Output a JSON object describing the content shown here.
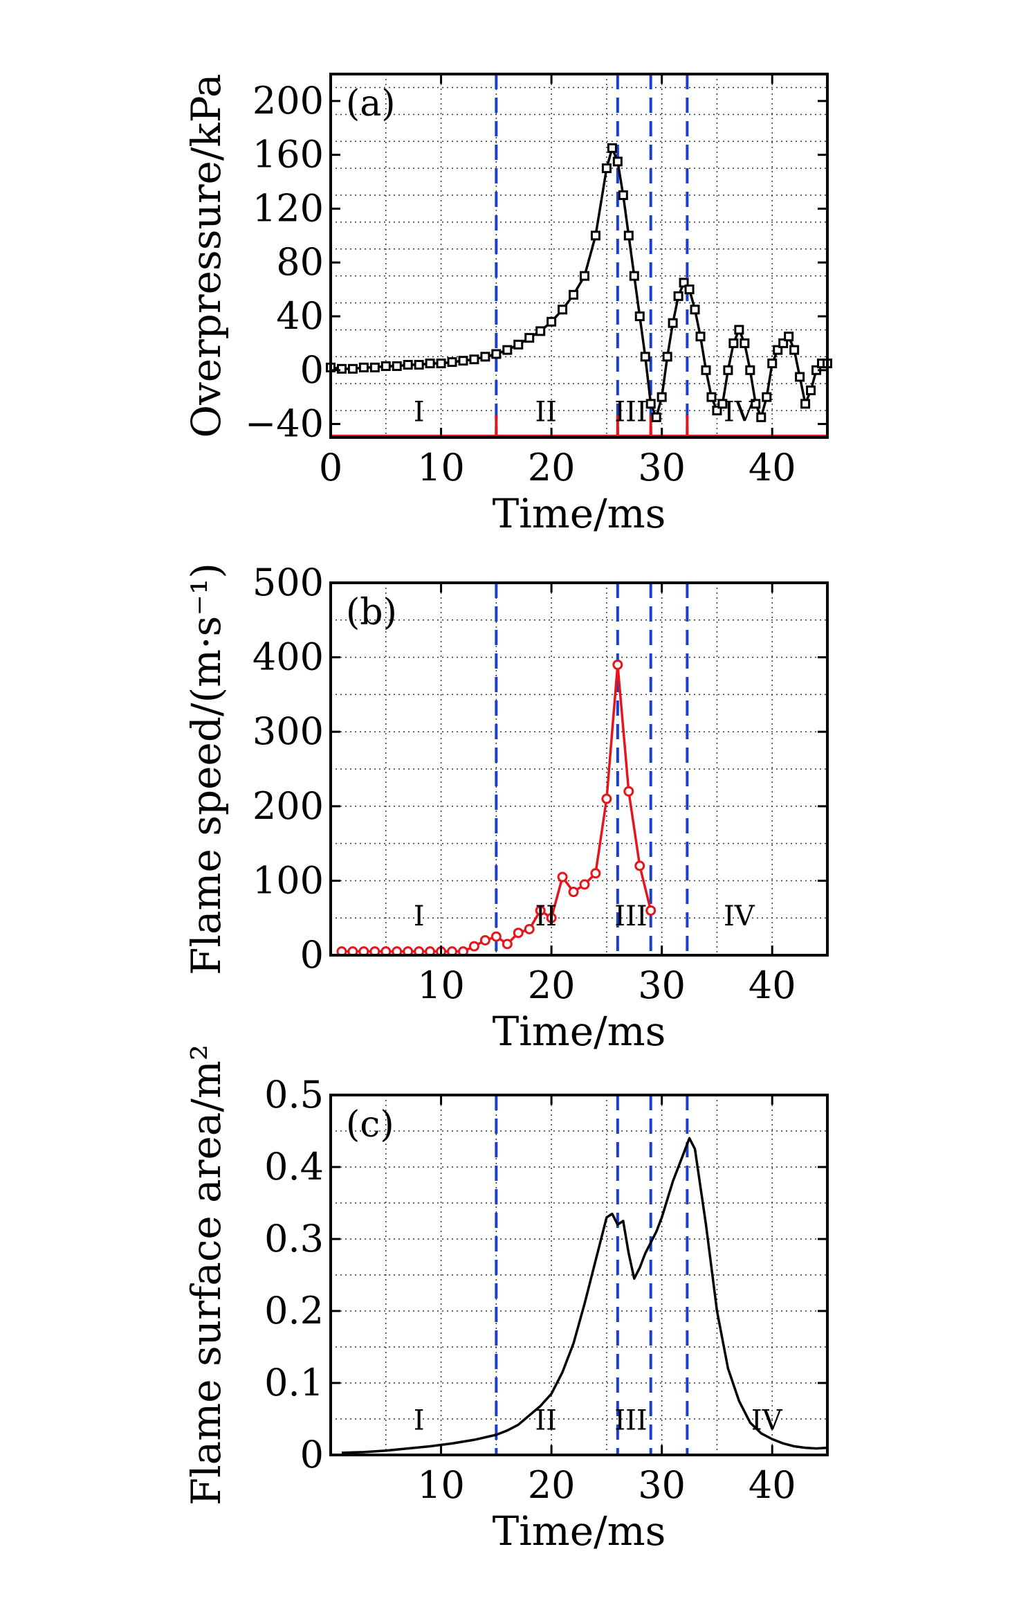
{
  "colors": {
    "black_series": "#000000",
    "red_series": "#e8141b",
    "phase_lines": "#1a3fd6",
    "grid": "#333333"
  },
  "chart_data": [
    {
      "type": "line",
      "panel_label": "(a)",
      "xlabel": "Time/ms",
      "ylabel": "Overpressure/kPa",
      "xlim": [
        0,
        45
      ],
      "ylim": [
        -50,
        220
      ],
      "xticks": [
        0,
        10,
        20,
        30,
        40
      ],
      "yticks": [
        -40,
        0,
        40,
        80,
        120,
        160,
        200
      ],
      "ytick_labels": [
        "−40",
        "0",
        "40",
        "80",
        "120",
        "160",
        "200"
      ],
      "grid": true,
      "marker": "square",
      "phase_lines_x": [
        15,
        26,
        29,
        32.3
      ],
      "region_labels": [
        {
          "text": "I",
          "x": 8,
          "y": -38
        },
        {
          "text": "II",
          "x": 19.5,
          "y": -38
        },
        {
          "text": "III",
          "x": 27.2,
          "y": -38
        },
        {
          "text": "IV",
          "x": 37,
          "y": -38
        }
      ],
      "baseline_y": -49,
      "series": [
        {
          "x": [
            0,
            1,
            2,
            3,
            4,
            5,
            6,
            7,
            8,
            9,
            10,
            11,
            12,
            13,
            14,
            15,
            16,
            17,
            18,
            19,
            20,
            21,
            22,
            23,
            24,
            25,
            25.5,
            26,
            26.5,
            27,
            27.5,
            28,
            28.5,
            29,
            29.5,
            30,
            30.5,
            31,
            31.5,
            32,
            32.5,
            33,
            33.5,
            34,
            34.5,
            35,
            35.5,
            36,
            36.5,
            37,
            37.5,
            38,
            38.5,
            39,
            39.5,
            40,
            40.5,
            41,
            41.5,
            42,
            42.5,
            43,
            43.5,
            44,
            44.5,
            45
          ],
          "y": [
            2,
            1,
            1,
            2,
            2,
            3,
            3,
            4,
            4,
            5,
            5,
            6,
            7,
            8,
            10,
            12,
            15,
            19,
            24,
            29,
            36,
            45,
            56,
            70,
            100,
            150,
            165,
            155,
            130,
            100,
            70,
            40,
            10,
            -25,
            -35,
            -20,
            10,
            35,
            55,
            65,
            60,
            45,
            25,
            0,
            -20,
            -30,
            -25,
            0,
            20,
            30,
            20,
            0,
            -25,
            -35,
            -20,
            5,
            15,
            20,
            25,
            15,
            -5,
            -25,
            -15,
            0,
            5,
            5
          ]
        }
      ]
    },
    {
      "type": "line",
      "panel_label": "(b)",
      "xlabel": "Time/ms",
      "ylabel": "Flame speed/(m·s⁻¹)",
      "xlim": [
        0,
        45
      ],
      "ylim": [
        0,
        500
      ],
      "xticks": [
        10,
        20,
        30,
        40
      ],
      "yticks": [
        0,
        100,
        200,
        300,
        400,
        500
      ],
      "grid": true,
      "marker": "circle",
      "phase_lines_x": [
        15,
        26,
        29,
        32.3
      ],
      "region_labels": [
        {
          "text": "I",
          "x": 8,
          "y": 40
        },
        {
          "text": "II",
          "x": 19.5,
          "y": 40
        },
        {
          "text": "III",
          "x": 27.2,
          "y": 40
        },
        {
          "text": "IV",
          "x": 37,
          "y": 40
        }
      ],
      "series": [
        {
          "x": [
            1,
            2,
            3,
            4,
            5,
            6,
            7,
            8,
            9,
            10,
            11,
            12,
            13,
            14,
            15,
            16,
            17,
            18,
            19,
            20,
            21,
            22,
            23,
            24,
            25,
            26,
            27,
            28,
            29
          ],
          "y": [
            5,
            5,
            5,
            5,
            5,
            5,
            5,
            5,
            5,
            5,
            5,
            5,
            12,
            20,
            25,
            15,
            30,
            35,
            60,
            50,
            105,
            85,
            95,
            110,
            210,
            390,
            220,
            120,
            60
          ]
        }
      ]
    },
    {
      "type": "line",
      "panel_label": "(c)",
      "xlabel": "Time/ms",
      "ylabel": "Flame surface area/m²",
      "xlim": [
        0,
        45
      ],
      "ylim": [
        0,
        0.5
      ],
      "xticks": [
        10,
        20,
        30,
        40
      ],
      "yticks": [
        0,
        0.1,
        0.2,
        0.3,
        0.4,
        0.5
      ],
      "grid": true,
      "marker": "none",
      "phase_lines_x": [
        15,
        26,
        29,
        32.3
      ],
      "region_labels": [
        {
          "text": "I",
          "x": 8,
          "y": 0.035
        },
        {
          "text": "II",
          "x": 19.5,
          "y": 0.035
        },
        {
          "text": "III",
          "x": 27.2,
          "y": 0.035
        },
        {
          "text": "IV",
          "x": 39.5,
          "y": 0.035
        }
      ],
      "series": [
        {
          "x": [
            1,
            3,
            5,
            7,
            9,
            11,
            13,
            15,
            16,
            17,
            18,
            19,
            20,
            21,
            22,
            23,
            24,
            25,
            25.5,
            26,
            26.5,
            27,
            27.5,
            28,
            28.5,
            29,
            29.5,
            30,
            31,
            32,
            32.5,
            33,
            34,
            35,
            36,
            37,
            38,
            39,
            40,
            41,
            42,
            43,
            44,
            45
          ],
          "y": [
            0.003,
            0.004,
            0.006,
            0.009,
            0.012,
            0.016,
            0.021,
            0.028,
            0.034,
            0.042,
            0.055,
            0.068,
            0.085,
            0.115,
            0.155,
            0.21,
            0.27,
            0.33,
            0.335,
            0.32,
            0.325,
            0.28,
            0.245,
            0.26,
            0.28,
            0.295,
            0.31,
            0.33,
            0.38,
            0.42,
            0.44,
            0.425,
            0.32,
            0.2,
            0.12,
            0.075,
            0.045,
            0.03,
            0.022,
            0.016,
            0.012,
            0.01,
            0.009,
            0.01
          ]
        }
      ]
    }
  ]
}
